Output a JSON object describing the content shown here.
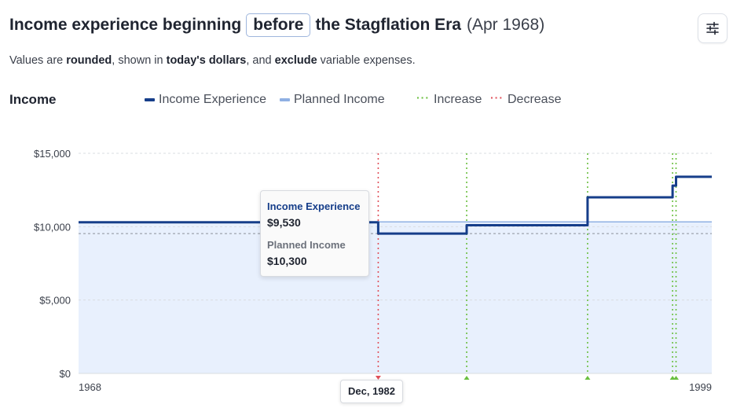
{
  "header": {
    "title_prefix": "Income experience beginning",
    "era_button": "before",
    "title_suffix": "the Stagflation Era",
    "date": "(Apr 1968)"
  },
  "subtitle": {
    "p1": "Values are ",
    "b1": "rounded",
    "p2": ", shown in ",
    "b2": "today's dollars",
    "p3": ", and ",
    "b3": "exclude",
    "p4": " variable expenses."
  },
  "settings_icon": "sliders-icon",
  "income_label": "Income",
  "legend": {
    "income_experience": "Income Experience",
    "planned_income": "Planned Income",
    "increase": "Increase",
    "decrease": "Decrease"
  },
  "colors": {
    "experience": "#163e8a",
    "planned": "#8fb0e3",
    "fill": "#e8f0fd",
    "increase": "#6abf3f",
    "decrease": "#e0505a",
    "grid": "#d9dce1"
  },
  "tooltip": {
    "exp_label": "Income Experience",
    "exp_value": "$9,530",
    "plan_label": "Planned Income",
    "plan_value": "$10,300"
  },
  "hover_date": "Dec, 1982",
  "chart_data": {
    "type": "line",
    "title": "",
    "xlabel": "",
    "ylabel": "",
    "xlim": [
      1968.25,
      1999.25
    ],
    "ylim": [
      0,
      15000
    ],
    "y_ticks": [
      0,
      5000,
      10000,
      15000
    ],
    "y_tick_labels": [
      "$0",
      "$5,000",
      "$10,000",
      "$15,000"
    ],
    "x_tick_labels": [
      "1968",
      "1999"
    ],
    "grid": true,
    "legend_position": "top",
    "series": [
      {
        "name": "Income Experience",
        "style": "step",
        "points": [
          [
            1968.25,
            10300
          ],
          [
            1982.92,
            10300
          ],
          [
            1982.92,
            9530
          ],
          [
            1987.25,
            9530
          ],
          [
            1987.25,
            10100
          ],
          [
            1993.17,
            10100
          ],
          [
            1993.17,
            12000
          ],
          [
            1997.33,
            12000
          ],
          [
            1997.33,
            12800
          ],
          [
            1997.5,
            12800
          ],
          [
            1997.5,
            13400
          ],
          [
            1999.25,
            13400
          ]
        ]
      },
      {
        "name": "Planned Income",
        "style": "flat",
        "points": [
          [
            1968.25,
            10300
          ],
          [
            1999.25,
            10300
          ]
        ]
      }
    ],
    "reference_lines": [
      {
        "kind": "decrease",
        "x": 1982.92
      },
      {
        "kind": "increase",
        "x": 1987.25
      },
      {
        "kind": "increase",
        "x": 1993.17
      },
      {
        "kind": "increase",
        "x": 1997.33
      },
      {
        "kind": "increase",
        "x": 1997.5
      }
    ],
    "hover": {
      "x": 1982.92,
      "value": 9530
    }
  }
}
